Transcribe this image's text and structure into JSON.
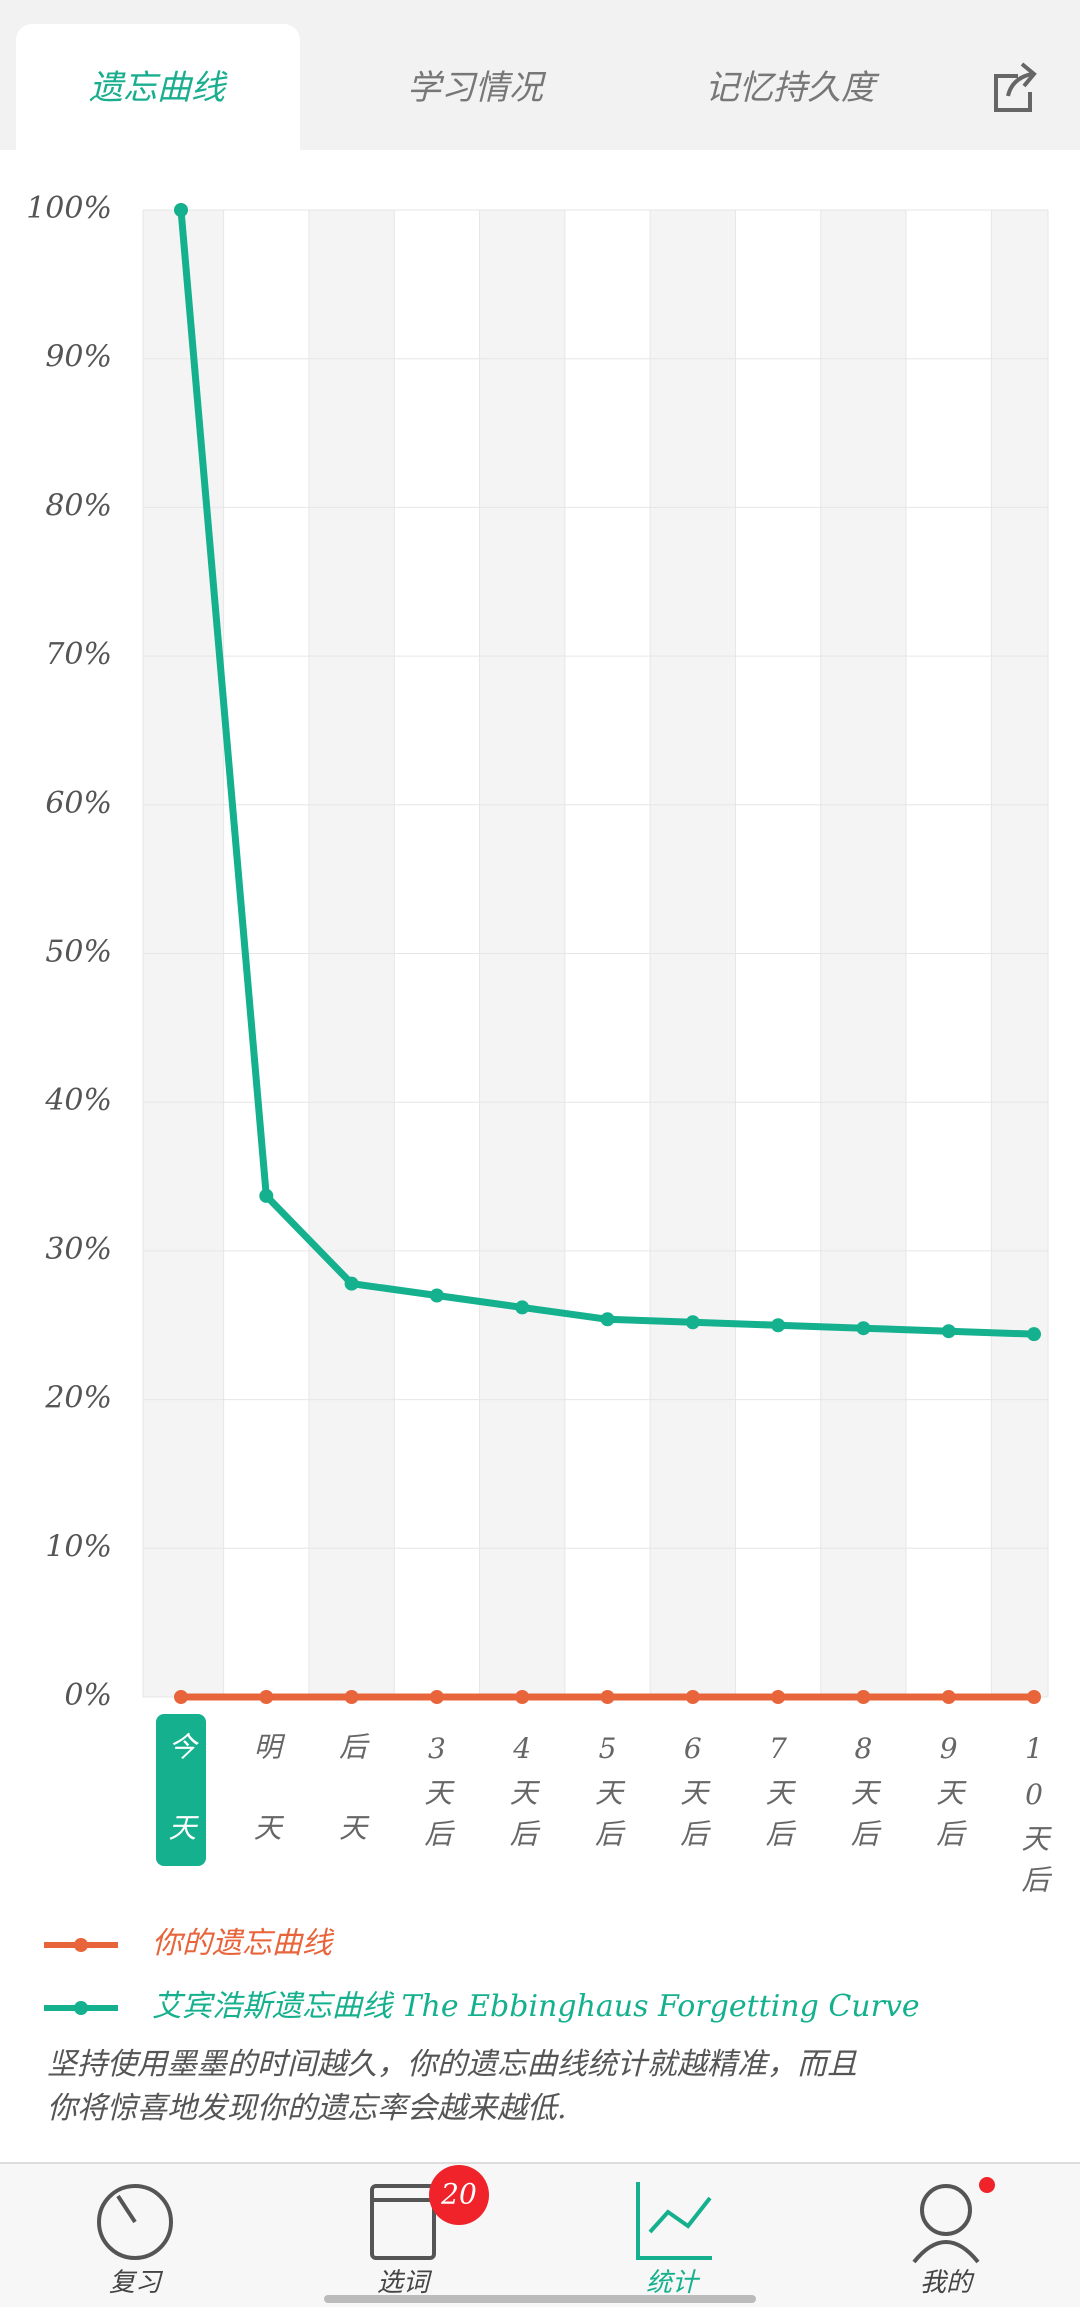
{
  "tabs": [
    "遗忘曲线",
    "学习情况",
    "记忆持久度"
  ],
  "chart_data": {
    "type": "line",
    "categories": [
      "今天",
      "明天",
      "后天",
      "3天后",
      "4天后",
      "5天后",
      "6天后",
      "7天后",
      "8天后",
      "9天后",
      "10天后"
    ],
    "series": [
      {
        "name": "你的遗忘曲线",
        "color": "#e8643a",
        "values": [
          0,
          0,
          0,
          0,
          0,
          0,
          0,
          0,
          0,
          0,
          0
        ]
      },
      {
        "name": "艾宾浩斯遗忘曲线 The Ebbinghaus Forgetting Curve",
        "color": "#15b08e",
        "values": [
          100,
          33.7,
          27.8,
          27.0,
          26.2,
          25.4,
          25.2,
          25.0,
          24.8,
          24.6,
          24.4
        ]
      }
    ],
    "ylim": [
      0,
      100
    ],
    "yticks": [
      {
        "value": 0,
        "label": "0%"
      },
      {
        "value": 10,
        "label": "10%"
      },
      {
        "value": 20,
        "label": "20%"
      },
      {
        "value": 30,
        "label": "30%"
      },
      {
        "value": 40,
        "label": "40%"
      },
      {
        "value": 50,
        "label": "50%"
      },
      {
        "value": 60,
        "label": "60%"
      },
      {
        "value": 70,
        "label": "70%"
      },
      {
        "value": 80,
        "label": "80%"
      },
      {
        "value": 90,
        "label": "90%"
      },
      {
        "value": 100,
        "label": "100%"
      }
    ],
    "grid": true
  },
  "note": [
    "坚持使用墨墨的时间越久，你的遗忘曲线统计就越精准，而且",
    "你将惊喜地发现你的遗忘率会越来越低."
  ],
  "nav": {
    "items": [
      "复习",
      "选词",
      "统计",
      "我的"
    ],
    "badge": 20
  }
}
